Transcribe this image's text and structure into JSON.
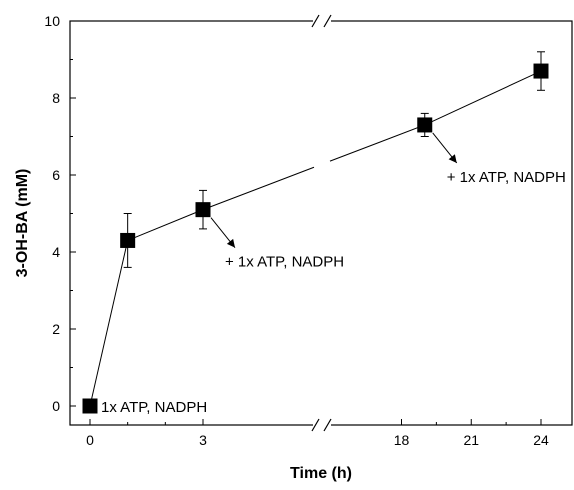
{
  "chart_data": {
    "type": "scatter",
    "title": "",
    "xlabel": "Time (h)",
    "ylabel": "3-OH-BA (mM)",
    "ylim": [
      0,
      10
    ],
    "x_axis": {
      "broken": true,
      "segments": [
        {
          "range": [
            0,
            3
          ],
          "ticks": [
            0,
            3
          ]
        },
        {
          "range": [
            16,
            24
          ],
          "ticks": [
            18,
            21,
            24
          ]
        }
      ]
    },
    "y_ticks": [
      0,
      2,
      4,
      6,
      8,
      10
    ],
    "grid": false,
    "legend": "none",
    "series": [
      {
        "points": [
          {
            "x": 0,
            "y": 0,
            "err": 0
          },
          {
            "x": 1,
            "y": 4.3,
            "err": 0.7
          },
          {
            "x": 3,
            "y": 5.1,
            "err": 0.5
          },
          {
            "x": 19,
            "y": 7.3,
            "err": 0.3
          },
          {
            "x": 24,
            "y": 8.7,
            "err": 0.5
          }
        ],
        "marker": "square",
        "color": "#000000"
      }
    ],
    "annotations": [
      {
        "text": "1x ATP, NADPH",
        "x": 0,
        "y": 0,
        "arrow": false
      },
      {
        "text": "+ 1x ATP, NADPH",
        "x": 3,
        "y": 5.1,
        "arrow": true
      },
      {
        "text": "+ 1x ATP, NADPH",
        "x": 19,
        "y": 7.3,
        "arrow": true
      }
    ]
  }
}
